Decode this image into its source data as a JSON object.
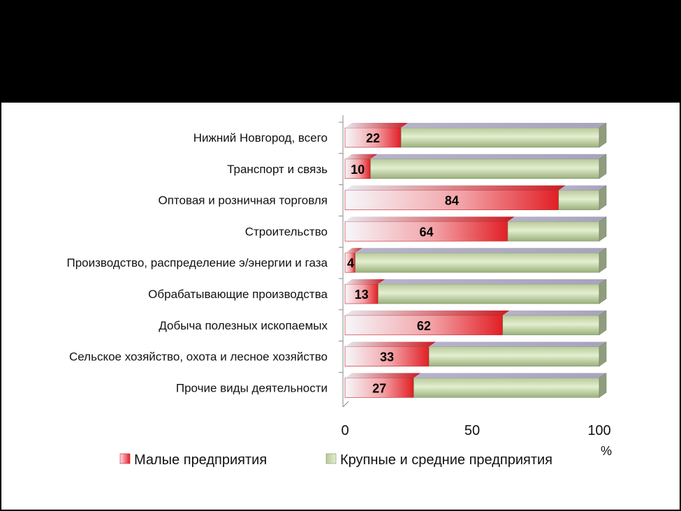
{
  "chart_data": {
    "type": "bar",
    "orientation": "horizontal",
    "stacked": true,
    "percent": true,
    "categories": [
      "Нижний Новгород,  всего",
      "Транспорт и связь",
      "Оптовая и розничная торговля",
      "Строительство",
      "Производство,  распределение  э/энергии  и газа",
      "Обрабатывающие  производства",
      "Добыча полезных  ископаемых",
      "Сельское хозяйство,  охота и лесное  хозяйство",
      "Прочие виды деятельности"
    ],
    "series": [
      {
        "name": "Малые предприятия",
        "values": [
          22,
          10,
          84,
          64,
          4,
          13,
          62,
          33,
          27
        ],
        "color": "#e8242a"
      },
      {
        "name": "Крупные и средние предприятия",
        "values": [
          78,
          90,
          16,
          36,
          96,
          87,
          38,
          67,
          73
        ],
        "color": "#c8dba8"
      }
    ],
    "xlim": [
      0,
      100
    ],
    "xticks": [
      "0",
      "50",
      "100"
    ],
    "x_unit": "%",
    "legend_position": "bottom",
    "grid": false
  }
}
